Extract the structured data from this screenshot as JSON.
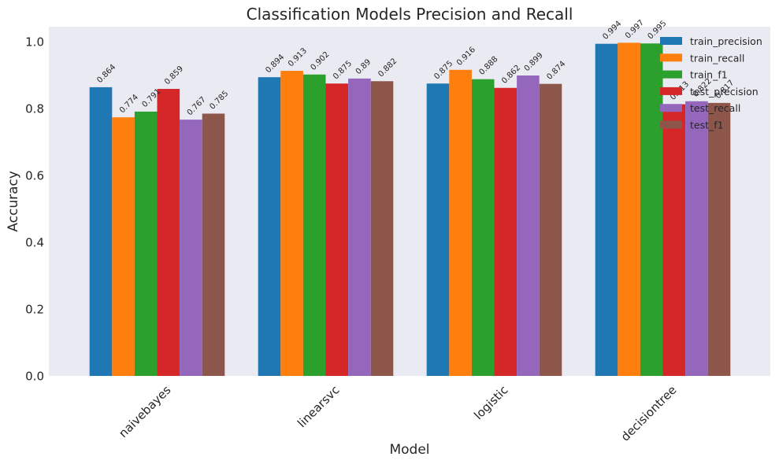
{
  "chart_data": {
    "type": "bar",
    "title": "Classification Models Precision and Recall",
    "xlabel": "Model",
    "ylabel": "Accuracy",
    "ylim": [
      0,
      1.045
    ],
    "yticks": [
      "0.0",
      "0.2",
      "0.4",
      "0.6",
      "0.8",
      "1.0"
    ],
    "categories": [
      "naivebayes",
      "linearsvc",
      "logistic",
      "decisiontree"
    ],
    "series": [
      {
        "name": "train_precision",
        "color": "#1f77b4",
        "values": [
          0.864,
          0.894,
          0.875,
          0.994
        ],
        "labels": [
          "0.864",
          "0.894",
          "0.875",
          "0.994"
        ]
      },
      {
        "name": "train_recall",
        "color": "#ff7f0e",
        "values": [
          0.774,
          0.913,
          0.916,
          0.997
        ],
        "labels": [
          "0.774",
          "0.913",
          "0.916",
          "0.997"
        ]
      },
      {
        "name": "train_f1",
        "color": "#2ca02c",
        "values": [
          0.791,
          0.902,
          0.888,
          0.995
        ],
        "labels": [
          "0.791",
          "0.902",
          "0.888",
          "0.995"
        ]
      },
      {
        "name": "test_precision",
        "color": "#d62728",
        "values": [
          0.859,
          0.875,
          0.862,
          0.813
        ],
        "labels": [
          "0.859",
          "0.875",
          "0.862",
          "0.813"
        ]
      },
      {
        "name": "test_recall",
        "color": "#9467bd",
        "values": [
          0.767,
          0.89,
          0.899,
          0.822
        ],
        "labels": [
          "0.767",
          "0.89",
          "0.899",
          "0.822"
        ]
      },
      {
        "name": "test_f1",
        "color": "#8c564b",
        "values": [
          0.785,
          0.882,
          0.874,
          0.817
        ],
        "labels": [
          "0.785",
          "0.882",
          "0.874",
          "0.817"
        ]
      }
    ],
    "grid": false,
    "legend_position": "top-right",
    "plot_background": "#eaeaf2"
  }
}
